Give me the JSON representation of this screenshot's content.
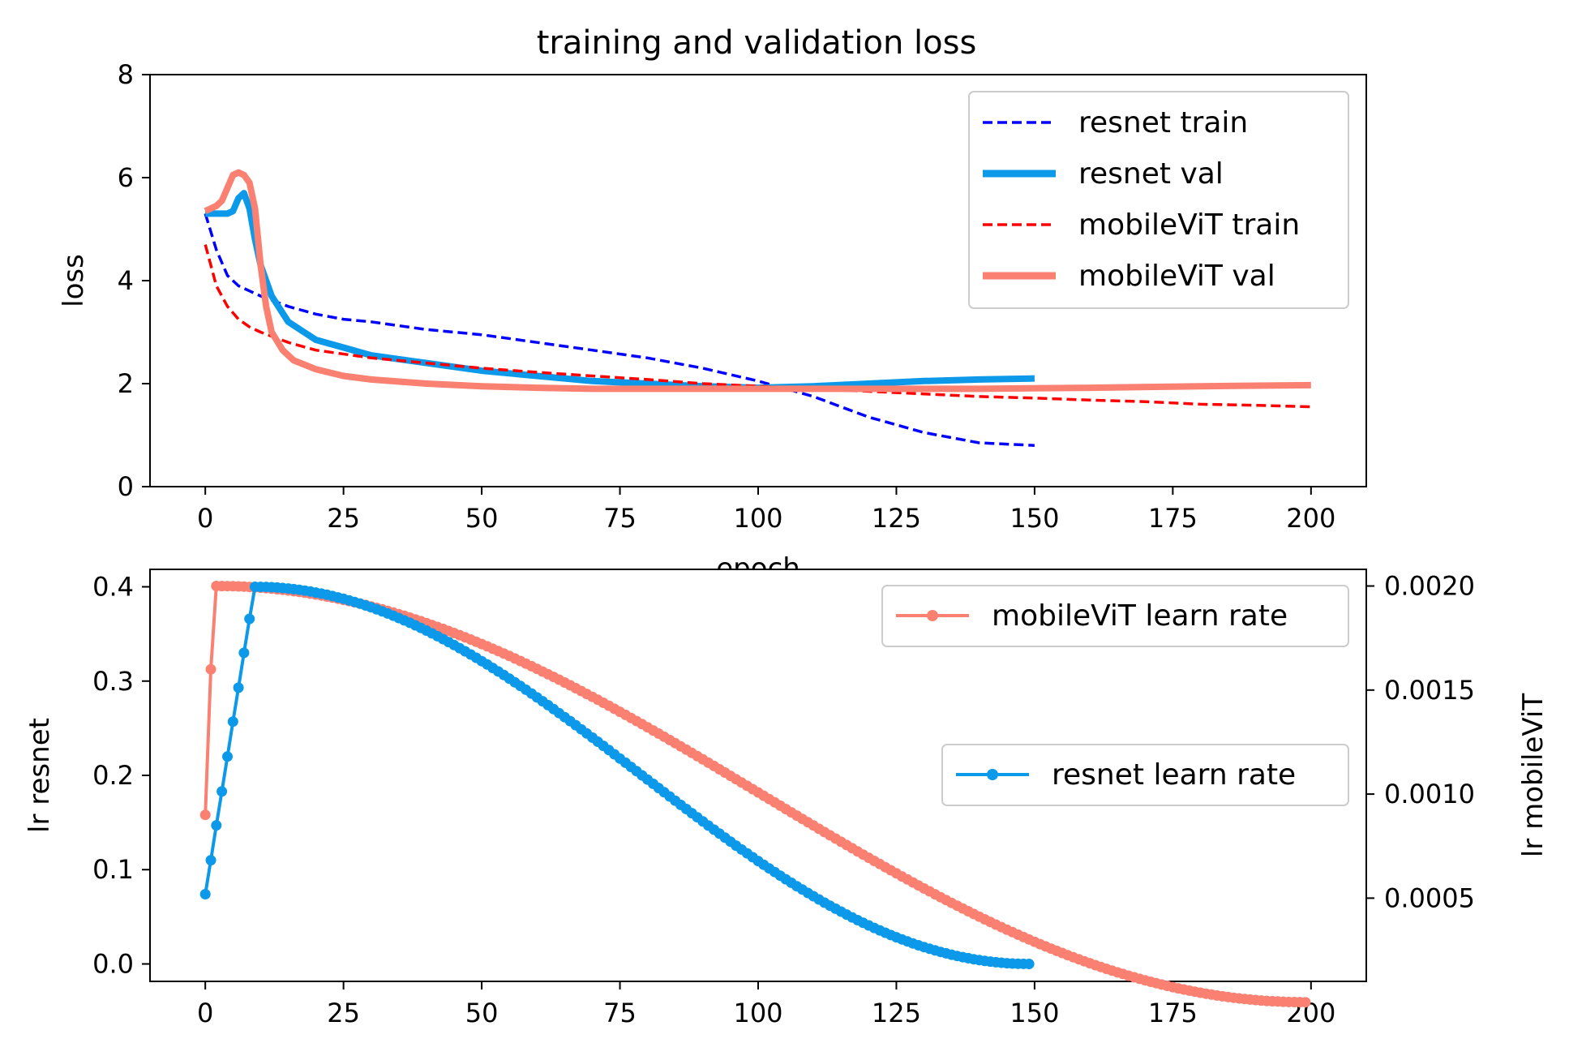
{
  "colors": {
    "resnet_train": "#0000ff",
    "resnet_val": "#0c99ea",
    "mobilevit_train": "#ff0000",
    "mobilevit_val": "#fa8072"
  },
  "chart_data": [
    {
      "type": "line",
      "title": "training and validation loss",
      "xlabel": "epoch",
      "ylabel": "loss",
      "xlim": [
        -10,
        210
      ],
      "ylim": [
        0,
        8
      ],
      "xticks": [
        0,
        25,
        50,
        75,
        100,
        125,
        150,
        175,
        200
      ],
      "yticks": [
        0,
        2,
        4,
        6,
        8
      ],
      "legend_position": "top-right",
      "grid": false,
      "series": [
        {
          "name": "resnet train",
          "style": "dashed",
          "x": [
            0,
            2,
            4,
            6,
            8,
            10,
            15,
            20,
            25,
            30,
            40,
            50,
            60,
            70,
            80,
            90,
            100,
            110,
            120,
            130,
            140,
            150
          ],
          "y": [
            5.3,
            4.6,
            4.1,
            3.9,
            3.8,
            3.7,
            3.5,
            3.35,
            3.25,
            3.2,
            3.05,
            2.95,
            2.8,
            2.65,
            2.5,
            2.3,
            2.05,
            1.75,
            1.35,
            1.05,
            0.85,
            0.8
          ]
        },
        {
          "name": "resnet val",
          "style": "solid",
          "x": [
            0,
            2,
            4,
            5,
            6,
            7,
            8,
            9,
            10,
            12,
            15,
            20,
            25,
            30,
            40,
            50,
            60,
            70,
            80,
            90,
            100,
            110,
            120,
            130,
            140,
            150
          ],
          "y": [
            5.3,
            5.3,
            5.3,
            5.35,
            5.6,
            5.7,
            5.4,
            4.8,
            4.3,
            3.7,
            3.2,
            2.85,
            2.7,
            2.55,
            2.4,
            2.25,
            2.15,
            2.05,
            2.0,
            1.95,
            1.92,
            1.95,
            2.0,
            2.05,
            2.08,
            2.1
          ]
        },
        {
          "name": "mobileViT train",
          "style": "dashed",
          "x": [
            0,
            2,
            4,
            6,
            8,
            10,
            15,
            20,
            30,
            40,
            50,
            60,
            70,
            80,
            90,
            100,
            110,
            120,
            130,
            140,
            150,
            160,
            170,
            180,
            190,
            200
          ],
          "y": [
            4.7,
            3.9,
            3.5,
            3.25,
            3.1,
            3.0,
            2.8,
            2.65,
            2.5,
            2.4,
            2.3,
            2.22,
            2.15,
            2.08,
            2.0,
            1.95,
            1.9,
            1.85,
            1.8,
            1.75,
            1.72,
            1.68,
            1.65,
            1.6,
            1.58,
            1.55
          ]
        },
        {
          "name": "mobileViT val",
          "style": "solid",
          "x": [
            0,
            2,
            3,
            4,
            5,
            6,
            7,
            8,
            9,
            10,
            11,
            12,
            14,
            16,
            20,
            25,
            30,
            40,
            50,
            60,
            70,
            80,
            90,
            100,
            120,
            140,
            160,
            180,
            200
          ],
          "y": [
            5.35,
            5.45,
            5.55,
            5.8,
            6.05,
            6.1,
            6.05,
            5.9,
            5.4,
            4.3,
            3.5,
            3.0,
            2.65,
            2.45,
            2.28,
            2.15,
            2.08,
            2.0,
            1.95,
            1.92,
            1.9,
            1.9,
            1.9,
            1.9,
            1.9,
            1.9,
            1.92,
            1.95,
            1.97
          ]
        }
      ]
    },
    {
      "type": "line",
      "xlabel": "",
      "ylabel_left": "lr resnet",
      "ylabel_right": "lr mobileViT",
      "xlim": [
        -10,
        210
      ],
      "ylim_left": [
        -0.0185,
        0.4185
      ],
      "ylim_right": [
        0.0001,
        0.00208
      ],
      "xticks": [
        0,
        25,
        50,
        75,
        100,
        125,
        150,
        175,
        200
      ],
      "yticks_left": [
        "0.0",
        "0.1",
        "0.2",
        "0.3",
        "0.4"
      ],
      "yticks_right": [
        "0.0005",
        "0.0010",
        "0.0015",
        "0.0020"
      ],
      "grid": false,
      "series": [
        {
          "name": "mobileViT learn rate",
          "axis": "right",
          "legend_position": "top-right",
          "epochs": 200,
          "peak": 0.002,
          "warmup": [
            0.0009,
            0.0016,
            0.002
          ],
          "marker": "dot"
        },
        {
          "name": "resnet learn rate",
          "axis": "left",
          "legend_position": "center-right",
          "epochs": 150,
          "peak": 0.4,
          "warmup": [
            0.074,
            0.11,
            0.147,
            0.183,
            0.22,
            0.257,
            0.293,
            0.33,
            0.366,
            0.4
          ],
          "marker": "dot"
        }
      ]
    }
  ]
}
